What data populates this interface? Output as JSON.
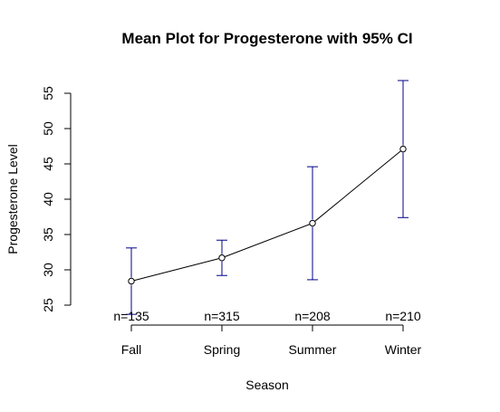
{
  "chart_data": {
    "type": "line",
    "title": "Mean Plot for Progesterone with 95% CI",
    "xlabel": "Season",
    "ylabel": "Progesterone Level",
    "categories": [
      "Fall",
      "Spring",
      "Summer",
      "Winter"
    ],
    "series": [
      {
        "values": [
          28.4,
          31.7,
          36.6,
          47.1
        ],
        "ci_lower": [
          23.7,
          29.2,
          28.6,
          37.4
        ],
        "ci_upper": [
          33.1,
          34.2,
          44.6,
          56.8
        ],
        "counts": [
          "n=135",
          "n=315",
          "n=208",
          "n=210"
        ]
      }
    ],
    "ylim": [
      25,
      55
    ],
    "yticks": [
      25,
      30,
      35,
      40,
      45,
      50,
      55
    ],
    "grid": false,
    "legend": "none",
    "colors": {
      "line": "#000000",
      "ci": "#00008b",
      "point": "#000000",
      "text": "#000000"
    }
  }
}
